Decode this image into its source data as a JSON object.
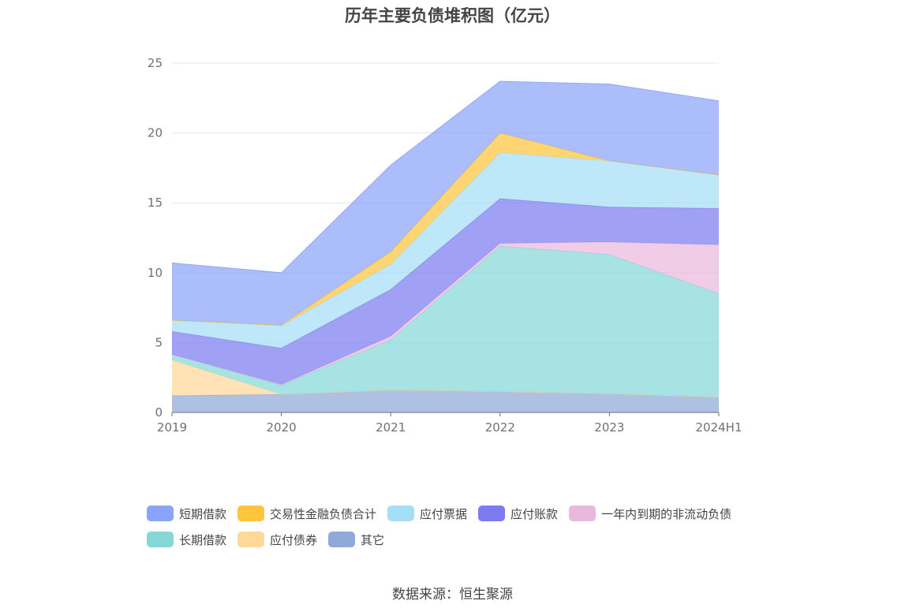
{
  "chart_data": {
    "type": "area",
    "stacked": true,
    "title": "历年主要负债堆积图（亿元）",
    "x": [
      "2019",
      "2020",
      "2021",
      "2022",
      "2023",
      "2024H1"
    ],
    "ylim": [
      0,
      25
    ],
    "yticks": [
      "0",
      "5",
      "10",
      "15",
      "20",
      "25"
    ],
    "grid": true,
    "legend_position": "bottom",
    "series": [
      {
        "name": "其它",
        "color": "#8fa9d8",
        "values": [
          1.2,
          1.3,
          1.6,
          1.5,
          1.35,
          1.1
        ]
      },
      {
        "name": "应付债券",
        "color": "#ffd89a",
        "values": [
          2.55,
          0,
          0,
          0,
          0,
          0
        ]
      },
      {
        "name": "长期借款",
        "color": "#86d8d8",
        "values": [
          0.4,
          0.65,
          3.6,
          10.4,
          9.95,
          7.4
        ]
      },
      {
        "name": "一年内到期的非流动负债",
        "color": "#ebb8dd",
        "values": [
          0,
          0.05,
          0.25,
          0.2,
          0.9,
          3.5
        ]
      },
      {
        "name": "应付账款",
        "color": "#7c7cf0",
        "values": [
          1.65,
          2.6,
          3.35,
          3.2,
          2.5,
          2.6
        ]
      },
      {
        "name": "应付票据",
        "color": "#a5dff7",
        "values": [
          0.8,
          1.6,
          1.8,
          3.3,
          3.3,
          2.4
        ]
      },
      {
        "name": "交易性金融负债合计",
        "color": "#ffc53d",
        "values": [
          0,
          0.05,
          0.9,
          1.4,
          0,
          0
        ]
      },
      {
        "name": "短期借款",
        "color": "#8aa4f9",
        "values": [
          4.1,
          3.75,
          6.2,
          3.7,
          5.5,
          5.3
        ]
      }
    ]
  },
  "legend": {
    "row1": [
      {
        "label": "短期借款",
        "color": "#8aa4f9"
      },
      {
        "label": "交易性金融负债合计",
        "color": "#ffc53d"
      },
      {
        "label": "应付票据",
        "color": "#a5dff7"
      },
      {
        "label": "应付账款",
        "color": "#7c7cf0"
      },
      {
        "label": "一年内到期的非流动负债",
        "color": "#ebb8dd"
      }
    ],
    "row2": [
      {
        "label": "长期借款",
        "color": "#86d8d8"
      },
      {
        "label": "应付债券",
        "color": "#ffd89a"
      },
      {
        "label": "其它",
        "color": "#8fa9d8"
      }
    ]
  },
  "source": "数据来源：恒生聚源"
}
